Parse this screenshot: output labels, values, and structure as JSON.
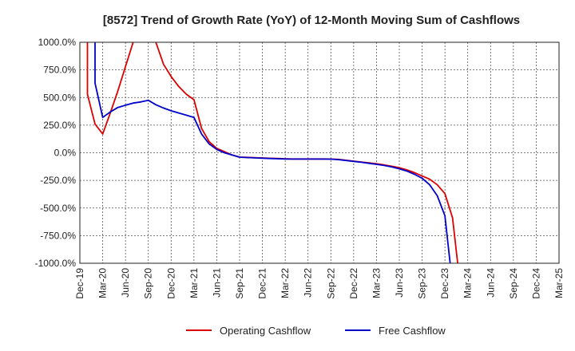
{
  "chart_data": {
    "type": "line",
    "title": "[8572]  Trend of Growth Rate (YoY) of 12-Month Moving Sum of Cashflows",
    "xlabel": "",
    "ylabel": "",
    "ylim": [
      -1000,
      1000
    ],
    "y_ticks": [
      1000,
      750,
      500,
      250,
      0,
      -250,
      -500,
      -750,
      -1000
    ],
    "y_tick_labels": [
      "1000.0%",
      "750.0%",
      "500.0%",
      "250.0%",
      "0.0%",
      "-250.0%",
      "-500.0%",
      "-750.0%",
      "-1000.0%"
    ],
    "x_tick_labels": [
      "Dec-19",
      "Mar-20",
      "Jun-20",
      "Sep-20",
      "Dec-20",
      "Mar-21",
      "Jun-21",
      "Sep-21",
      "Dec-21",
      "Mar-22",
      "Jun-22",
      "Sep-22",
      "Dec-22",
      "Mar-23",
      "Jun-23",
      "Sep-23",
      "Dec-23",
      "Mar-24",
      "Jun-24",
      "Sep-24",
      "Dec-24",
      "Mar-25"
    ],
    "grid": true,
    "legend_position": "bottom",
    "series": [
      {
        "name": "Operating Cashflow",
        "color": "#dd0000",
        "points": [
          [
            "Jan-20",
            3000
          ],
          [
            "Jan-20",
            530
          ],
          [
            "Feb-20",
            260
          ],
          [
            "Mar-20",
            170
          ],
          [
            "Apr-20",
            360
          ],
          [
            "May-20",
            560
          ],
          [
            "Jun-20",
            780
          ],
          [
            "Jul-20",
            1000
          ],
          [
            "Aug-20",
            1300
          ],
          [
            "Sep-20",
            1300
          ],
          [
            "Oct-20",
            1000
          ],
          [
            "Nov-20",
            800
          ],
          [
            "Dec-20",
            690
          ],
          [
            "Jan-21",
            600
          ],
          [
            "Feb-21",
            530
          ],
          [
            "Mar-21",
            480
          ],
          [
            "Apr-21",
            220
          ],
          [
            "May-21",
            100
          ],
          [
            "Jun-21",
            40
          ],
          [
            "Jul-21",
            10
          ],
          [
            "Aug-21",
            -20
          ],
          [
            "Sep-21",
            -40
          ],
          [
            "Oct-21",
            -42
          ],
          [
            "Nov-21",
            -45
          ],
          [
            "Dec-21",
            -47
          ],
          [
            "Jan-22",
            -50
          ],
          [
            "Feb-22",
            -52
          ],
          [
            "Mar-22",
            -55
          ],
          [
            "Apr-22",
            -56
          ],
          [
            "May-22",
            -56
          ],
          [
            "Jun-22",
            -56
          ],
          [
            "Jul-22",
            -56
          ],
          [
            "Aug-22",
            -56
          ],
          [
            "Sep-22",
            -57
          ],
          [
            "Oct-22",
            -60
          ],
          [
            "Nov-22",
            -68
          ],
          [
            "Dec-22",
            -76
          ],
          [
            "Jan-23",
            -84
          ],
          [
            "Feb-23",
            -92
          ],
          [
            "Mar-23",
            -100
          ],
          [
            "Apr-23",
            -110
          ],
          [
            "May-23",
            -122
          ],
          [
            "Jun-23",
            -135
          ],
          [
            "Jul-23",
            -155
          ],
          [
            "Aug-23",
            -180
          ],
          [
            "Sep-23",
            -210
          ],
          [
            "Oct-23",
            -240
          ],
          [
            "Nov-23",
            -290
          ],
          [
            "Dec-23",
            -370
          ],
          [
            "Jan-24",
            -590
          ],
          [
            "Feb-24",
            -1200
          ]
        ]
      },
      {
        "name": "Free Cashflow",
        "color": "#0000cc",
        "points": [
          [
            "Feb-20",
            3000
          ],
          [
            "Feb-20",
            630
          ],
          [
            "Mar-20",
            320
          ],
          [
            "Apr-20",
            370
          ],
          [
            "May-20",
            410
          ],
          [
            "Jun-20",
            430
          ],
          [
            "Jul-20",
            450
          ],
          [
            "Aug-20",
            460
          ],
          [
            "Sep-20",
            475
          ],
          [
            "Oct-20",
            435
          ],
          [
            "Nov-20",
            405
          ],
          [
            "Dec-20",
            380
          ],
          [
            "Jan-21",
            360
          ],
          [
            "Feb-21",
            340
          ],
          [
            "Mar-21",
            320
          ],
          [
            "Apr-21",
            170
          ],
          [
            "May-21",
            80
          ],
          [
            "Jun-21",
            30
          ],
          [
            "Jul-21",
            0
          ],
          [
            "Aug-21",
            -20
          ],
          [
            "Sep-21",
            -40
          ],
          [
            "Oct-21",
            -43
          ],
          [
            "Nov-21",
            -46
          ],
          [
            "Dec-21",
            -49
          ],
          [
            "Jan-22",
            -52
          ],
          [
            "Feb-22",
            -54
          ],
          [
            "Mar-22",
            -56
          ],
          [
            "Apr-22",
            -57
          ],
          [
            "May-22",
            -57
          ],
          [
            "Jun-22",
            -57
          ],
          [
            "Jul-22",
            -57
          ],
          [
            "Aug-22",
            -57
          ],
          [
            "Sep-22",
            -58
          ],
          [
            "Oct-22",
            -62
          ],
          [
            "Nov-22",
            -70
          ],
          [
            "Dec-22",
            -78
          ],
          [
            "Jan-23",
            -86
          ],
          [
            "Feb-23",
            -95
          ],
          [
            "Mar-23",
            -105
          ],
          [
            "Apr-23",
            -115
          ],
          [
            "May-23",
            -128
          ],
          [
            "Jun-23",
            -145
          ],
          [
            "Jul-23",
            -165
          ],
          [
            "Aug-23",
            -195
          ],
          [
            "Sep-23",
            -230
          ],
          [
            "Oct-23",
            -290
          ],
          [
            "Nov-23",
            -390
          ],
          [
            "Dec-23",
            -570
          ],
          [
            "Jan-24",
            -1200
          ]
        ]
      }
    ]
  }
}
